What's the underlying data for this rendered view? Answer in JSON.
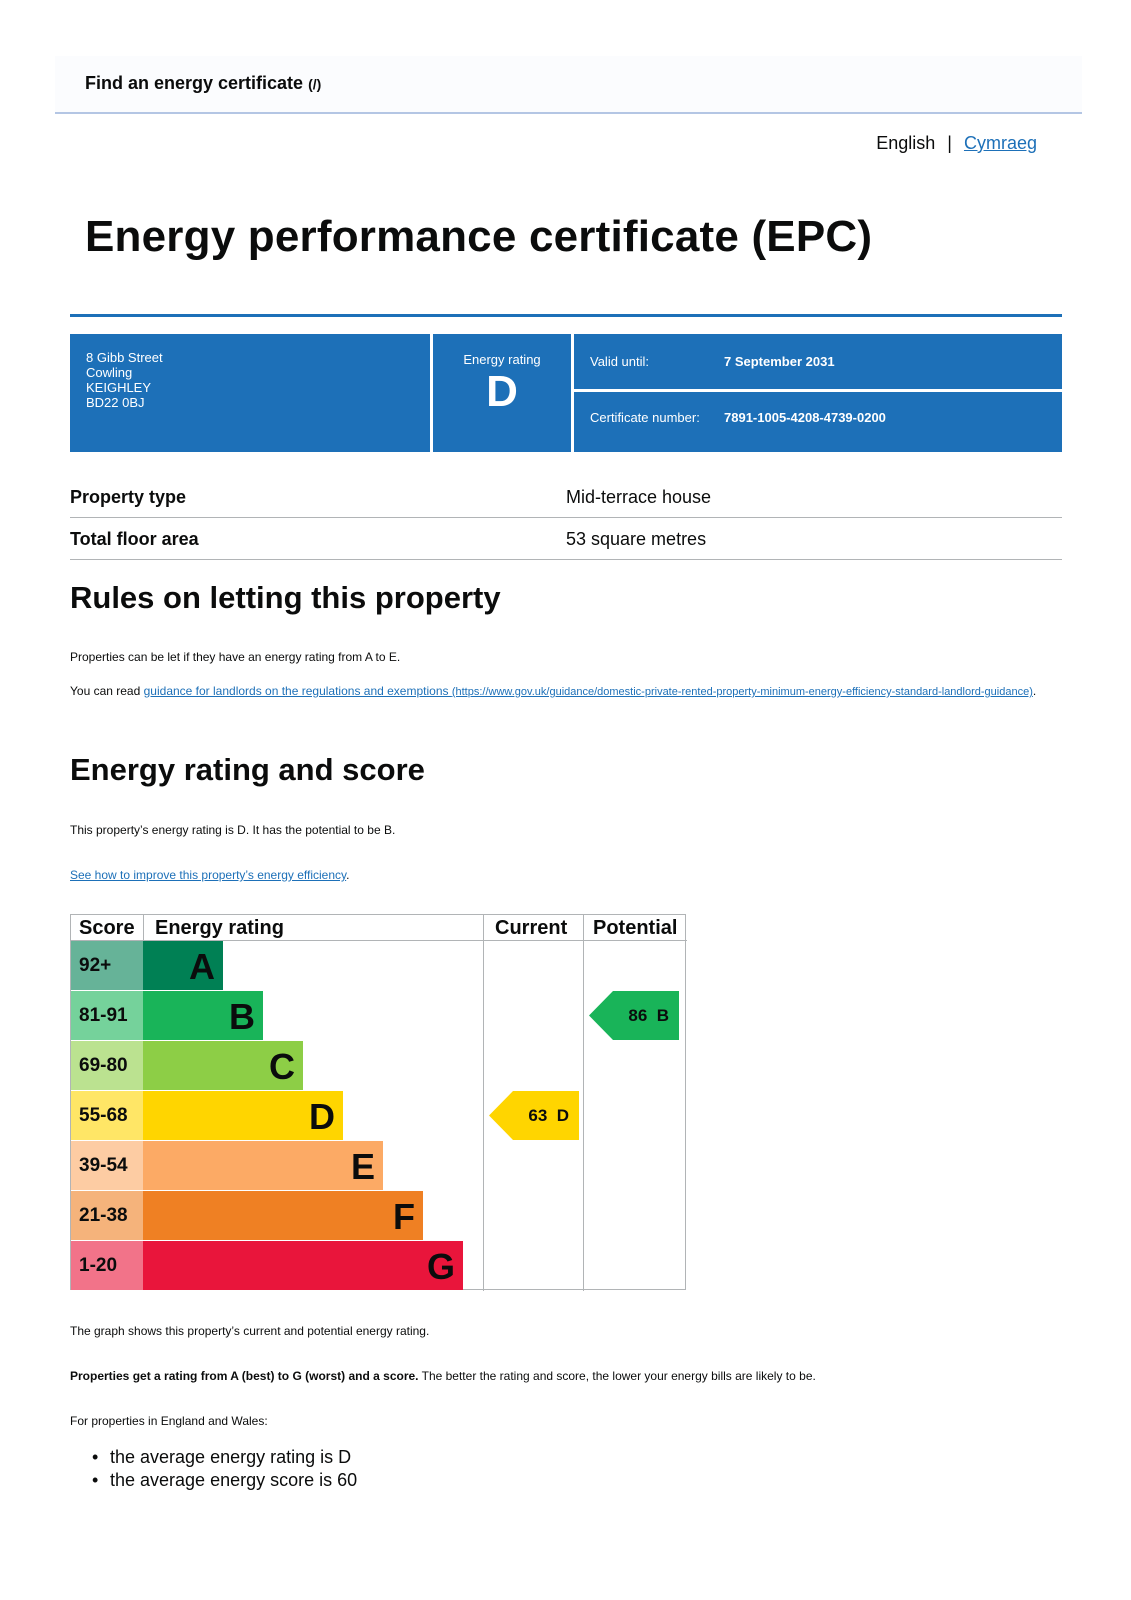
{
  "header": {
    "title": "Find an energy certificate",
    "title_suffix": "(/)"
  },
  "language": {
    "current": "English",
    "separator": "|",
    "alternate": "Cymraeg"
  },
  "page_title": "Energy performance certificate (EPC)",
  "certificate": {
    "address": [
      "8 Gibb Street",
      "Cowling",
      "KEIGHLEY",
      "BD22 0BJ"
    ],
    "energy_rating_label": "Energy rating",
    "energy_rating": "D",
    "valid_until_label": "Valid until:",
    "valid_until": "7 September 2031",
    "certificate_number_label": "Certificate number:",
    "certificate_number": "7891-1005-4208-4739-0200"
  },
  "summary": [
    {
      "key": "Property type",
      "value": "Mid-terrace house"
    },
    {
      "key": "Total floor area",
      "value": "53 square metres"
    }
  ],
  "letting": {
    "heading": "Rules on letting this property",
    "p1": "Properties can be let if they have an energy rating from A to E.",
    "p2_prefix": "You can read ",
    "p2_link": "guidance for landlords on the regulations and exemptions",
    "p2_url": "(https://www.gov.uk/guidance/domestic-private-rented-property-minimum-energy-efficiency-standard-landlord-guidance)",
    "p2_suffix": "."
  },
  "rating_section": {
    "heading": "Energy rating and score",
    "p1": "This property’s energy rating is D. It has the potential to be B.",
    "improve_link": "See how to improve this property’s energy efficiency",
    "improve_suffix": "."
  },
  "chart_data": {
    "type": "table",
    "headers": {
      "score": "Score",
      "rating": "Energy rating",
      "current": "Current",
      "potential": "Potential"
    },
    "bands": [
      {
        "score": "92+",
        "letter": "A",
        "color": "#008054",
        "score_bg": "#66b398"
      },
      {
        "score": "81-91",
        "letter": "B",
        "color": "#19b459",
        "score_bg": "#75d29b"
      },
      {
        "score": "69-80",
        "letter": "C",
        "color": "#8dce46",
        "score_bg": "#bbe290"
      },
      {
        "score": "55-68",
        "letter": "D",
        "color": "#ffd500",
        "score_bg": "#ffe666"
      },
      {
        "score": "39-54",
        "letter": "E",
        "color": "#fcaa65",
        "score_bg": "#fdcca3"
      },
      {
        "score": "21-38",
        "letter": "F",
        "color": "#ef8023",
        "score_bg": "#f5b37b"
      },
      {
        "score": "1-20",
        "letter": "G",
        "color": "#e9153b",
        "score_bg": "#f27389"
      }
    ],
    "current": {
      "score": 63,
      "letter": "D",
      "color": "#ffd500"
    },
    "potential": {
      "score": 86,
      "letter": "B",
      "color": "#19b459"
    }
  },
  "after_chart": {
    "p1": "The graph shows this property’s current and potential energy rating.",
    "p2_bold": "Properties get a rating from A (best) to G (worst) and a score.",
    "p2_rest": " The better the rating and score, the lower your energy bills are likely to be.",
    "p3": "For properties in England and Wales:",
    "averages": [
      "the average energy rating is D",
      "the average energy score is 60"
    ]
  }
}
